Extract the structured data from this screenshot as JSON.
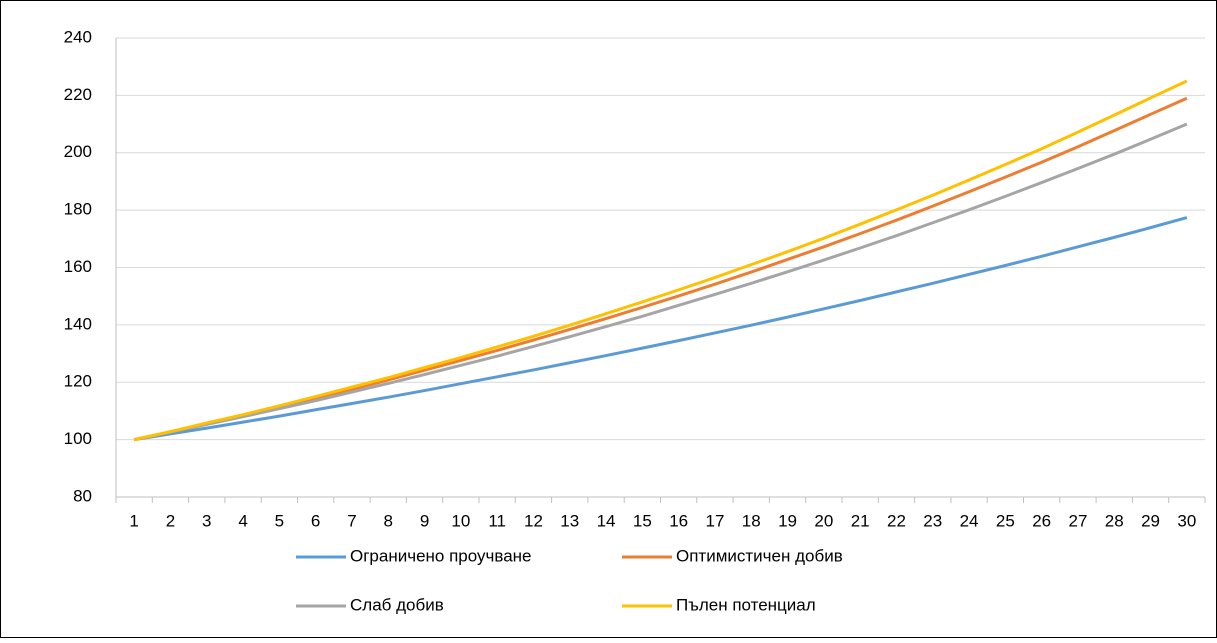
{
  "chart_data": {
    "type": "line",
    "categories": [
      "1",
      "2",
      "3",
      "4",
      "5",
      "6",
      "7",
      "8",
      "9",
      "10",
      "11",
      "12",
      "13",
      "14",
      "15",
      "16",
      "17",
      "18",
      "19",
      "20",
      "21",
      "22",
      "23",
      "24",
      "25",
      "26",
      "27",
      "28",
      "29",
      "30"
    ],
    "series": [
      {
        "name": "Ограничено проучване",
        "color": "#5b9bd5",
        "values": [
          100,
          102,
          104,
          106.1,
          108.2,
          110.4,
          112.6,
          114.8,
          117.1,
          119.5,
          121.9,
          124.3,
          126.8,
          129.3,
          131.9,
          134.5,
          137.2,
          139.9,
          142.7,
          145.6,
          148.5,
          151.5,
          154.5,
          157.6,
          160.7,
          163.9,
          167.2,
          170.5,
          173.9,
          177.4
        ]
      },
      {
        "name": "Оптимистичен добив",
        "color": "#ed7d31",
        "values": [
          100,
          102.7,
          105.6,
          108.5,
          111.4,
          114.5,
          117.6,
          120.8,
          124.2,
          127.6,
          131.1,
          134.7,
          138.4,
          142.2,
          146.1,
          150.1,
          154.2,
          158.4,
          162.8,
          167.2,
          171.8,
          176.5,
          181.4,
          186.4,
          191.5,
          196.7,
          202.1,
          207.7,
          213.4,
          219
        ]
      },
      {
        "name": "Слаб добив",
        "color": "#a5a5a5",
        "values": [
          100,
          102.6,
          105.3,
          108,
          110.8,
          113.6,
          116.6,
          119.6,
          122.7,
          125.9,
          129.1,
          132.5,
          135.9,
          139.4,
          143,
          146.8,
          150.6,
          154.5,
          158.5,
          162.6,
          166.8,
          171.1,
          175.6,
          180.1,
          184.8,
          189.6,
          194.5,
          199.5,
          204.7,
          210
        ]
      },
      {
        "name": "Пълен потенциал",
        "color": "#ffc000",
        "values": [
          100,
          102.8,
          105.8,
          108.7,
          111.8,
          115,
          118.3,
          121.6,
          125.1,
          128.6,
          132.3,
          136,
          139.9,
          143.9,
          148,
          152.2,
          156.5,
          161,
          165.5,
          170.2,
          175.1,
          180.1,
          185.2,
          190.5,
          195.9,
          201.4,
          207.2,
          213.1,
          219.1,
          225
        ]
      }
    ],
    "ylim": [
      80,
      240
    ],
    "yticks": [
      80,
      100,
      120,
      140,
      160,
      180,
      200,
      220,
      240
    ],
    "grid": true,
    "legend": "bottom"
  }
}
